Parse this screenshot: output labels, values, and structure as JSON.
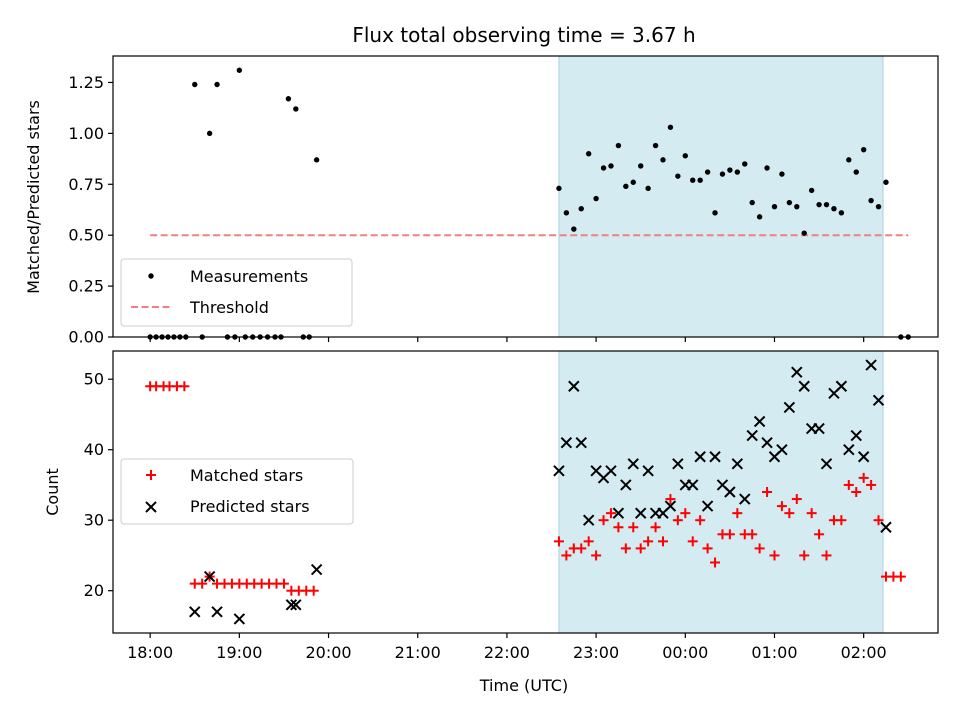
{
  "chart_data": [
    {
      "type": "scatter",
      "title": "Flux total observing time = 3.67 h",
      "xlabel": "",
      "ylabel": "Matched/Predicted stars",
      "xlim": [
        "17:35",
        "02:50"
      ],
      "ylim": [
        0,
        1.38
      ],
      "yticks": [
        "0.00",
        "0.25",
        "0.50",
        "0.75",
        "1.00",
        "1.25"
      ],
      "ytick_values": [
        0,
        0.25,
        0.5,
        0.75,
        1.0,
        1.25
      ],
      "xtick_values": [
        "18:00",
        "19:00",
        "20:00",
        "21:00",
        "22:00",
        "23:00",
        "00:00",
        "01:00",
        "02:00"
      ],
      "shaded_interval": [
        "22:35",
        "02:13"
      ],
      "shade_color": "#d4ebf1",
      "legend_position": "lower-left",
      "legend": [
        "Measurements",
        "Threshold"
      ],
      "threshold": {
        "name": "Threshold",
        "y": 0.5,
        "x_range": [
          "18:00",
          "02:30"
        ],
        "color": "#f08080"
      },
      "series": [
        {
          "name": "Measurements",
          "color": "#000000",
          "points": [
            [
              "18:00",
              0
            ],
            [
              "18:04",
              0
            ],
            [
              "18:08",
              0
            ],
            [
              "18:12",
              0
            ],
            [
              "18:16",
              0
            ],
            [
              "18:20",
              0
            ],
            [
              "18:24",
              0
            ],
            [
              "18:30",
              1.24
            ],
            [
              "18:35",
              0
            ],
            [
              "18:40",
              1.0
            ],
            [
              "18:45",
              1.24
            ],
            [
              "18:52",
              0
            ],
            [
              "18:57",
              0
            ],
            [
              "19:00",
              1.31
            ],
            [
              "19:04",
              0
            ],
            [
              "19:09",
              0
            ],
            [
              "19:14",
              0
            ],
            [
              "19:19",
              0
            ],
            [
              "19:24",
              0
            ],
            [
              "19:28",
              0
            ],
            [
              "19:33",
              1.17
            ],
            [
              "19:38",
              1.12
            ],
            [
              "19:43",
              0
            ],
            [
              "19:47",
              0
            ],
            [
              "19:52",
              0.87
            ],
            [
              "22:35",
              0.73
            ],
            [
              "22:40",
              0.61
            ],
            [
              "22:45",
              0.53
            ],
            [
              "22:50",
              0.63
            ],
            [
              "22:55",
              0.9
            ],
            [
              "23:00",
              0.68
            ],
            [
              "23:05",
              0.83
            ],
            [
              "23:10",
              0.84
            ],
            [
              "23:15",
              0.94
            ],
            [
              "23:20",
              0.74
            ],
            [
              "23:25",
              0.76
            ],
            [
              "23:30",
              0.84
            ],
            [
              "23:35",
              0.73
            ],
            [
              "23:40",
              0.94
            ],
            [
              "23:45",
              0.87
            ],
            [
              "23:50",
              1.03
            ],
            [
              "23:55",
              0.79
            ],
            [
              "00:00",
              0.89
            ],
            [
              "00:05",
              0.77
            ],
            [
              "00:10",
              0.77
            ],
            [
              "00:15",
              0.81
            ],
            [
              "00:20",
              0.61
            ],
            [
              "00:25",
              0.8
            ],
            [
              "00:30",
              0.82
            ],
            [
              "00:35",
              0.81
            ],
            [
              "00:40",
              0.85
            ],
            [
              "00:45",
              0.66
            ],
            [
              "00:50",
              0.59
            ],
            [
              "00:55",
              0.83
            ],
            [
              "01:00",
              0.64
            ],
            [
              "01:05",
              0.8
            ],
            [
              "01:10",
              0.66
            ],
            [
              "01:15",
              0.64
            ],
            [
              "01:20",
              0.51
            ],
            [
              "01:25",
              0.72
            ],
            [
              "01:30",
              0.65
            ],
            [
              "01:35",
              0.65
            ],
            [
              "01:40",
              0.63
            ],
            [
              "01:45",
              0.61
            ],
            [
              "01:50",
              0.87
            ],
            [
              "01:55",
              0.81
            ],
            [
              "02:00",
              0.92
            ],
            [
              "02:05",
              0.67
            ],
            [
              "02:10",
              0.64
            ],
            [
              "02:15",
              0.76
            ],
            [
              "02:25",
              0
            ],
            [
              "02:30",
              0
            ]
          ]
        }
      ]
    },
    {
      "type": "scatter",
      "xlabel": "Time (UTC)",
      "ylabel": "Count",
      "xlim": [
        "17:35",
        "02:50"
      ],
      "ylim": [
        14,
        54
      ],
      "yticks": [
        "20",
        "30",
        "40",
        "50"
      ],
      "ytick_values": [
        20,
        30,
        40,
        50
      ],
      "xticks": [
        "18:00",
        "19:00",
        "20:00",
        "21:00",
        "22:00",
        "23:00",
        "00:00",
        "01:00",
        "02:00"
      ],
      "xtick_values": [
        "18:00",
        "19:00",
        "20:00",
        "21:00",
        "22:00",
        "23:00",
        "00:00",
        "01:00",
        "02:00"
      ],
      "shaded_interval": [
        "22:35",
        "02:13"
      ],
      "shade_color": "#d4ebf1",
      "legend_position": "center-left",
      "legend": [
        "Matched stars",
        "Predicted stars"
      ],
      "series": [
        {
          "name": "Matched stars",
          "marker": "plus",
          "color": "#ff0000",
          "points": [
            [
              "18:00",
              49
            ],
            [
              "18:04",
              49
            ],
            [
              "18:09",
              49
            ],
            [
              "18:13",
              49
            ],
            [
              "18:18",
              49
            ],
            [
              "18:23",
              49
            ],
            [
              "18:30",
              21
            ],
            [
              "18:35",
              21
            ],
            [
              "18:40",
              22
            ],
            [
              "18:45",
              21
            ],
            [
              "18:50",
              21
            ],
            [
              "18:55",
              21
            ],
            [
              "19:00",
              21
            ],
            [
              "19:05",
              21
            ],
            [
              "19:10",
              21
            ],
            [
              "19:15",
              21
            ],
            [
              "19:20",
              21
            ],
            [
              "19:25",
              21
            ],
            [
              "19:30",
              21
            ],
            [
              "19:35",
              20
            ],
            [
              "19:40",
              20
            ],
            [
              "19:45",
              20
            ],
            [
              "19:50",
              20
            ],
            [
              "22:35",
              27
            ],
            [
              "22:40",
              25
            ],
            [
              "22:45",
              26
            ],
            [
              "22:50",
              26
            ],
            [
              "22:55",
              27
            ],
            [
              "23:00",
              25
            ],
            [
              "23:05",
              30
            ],
            [
              "23:10",
              31
            ],
            [
              "23:15",
              29
            ],
            [
              "23:20",
              26
            ],
            [
              "23:25",
              29
            ],
            [
              "23:30",
              26
            ],
            [
              "23:35",
              27
            ],
            [
              "23:40",
              29
            ],
            [
              "23:45",
              27
            ],
            [
              "23:50",
              33
            ],
            [
              "23:55",
              30
            ],
            [
              "00:00",
              31
            ],
            [
              "00:05",
              27
            ],
            [
              "00:10",
              30
            ],
            [
              "00:15",
              26
            ],
            [
              "00:20",
              24
            ],
            [
              "00:25",
              28
            ],
            [
              "00:30",
              28
            ],
            [
              "00:35",
              31
            ],
            [
              "00:40",
              28
            ],
            [
              "00:45",
              28
            ],
            [
              "00:50",
              26
            ],
            [
              "00:55",
              34
            ],
            [
              "01:00",
              25
            ],
            [
              "01:05",
              32
            ],
            [
              "01:10",
              31
            ],
            [
              "01:15",
              33
            ],
            [
              "01:20",
              25
            ],
            [
              "01:25",
              31
            ],
            [
              "01:30",
              28
            ],
            [
              "01:35",
              25
            ],
            [
              "01:40",
              30
            ],
            [
              "01:45",
              30
            ],
            [
              "01:50",
              35
            ],
            [
              "01:55",
              34
            ],
            [
              "02:00",
              36
            ],
            [
              "02:05",
              35
            ],
            [
              "02:10",
              30
            ],
            [
              "02:15",
              22
            ],
            [
              "02:20",
              22
            ],
            [
              "02:25",
              22
            ]
          ]
        },
        {
          "name": "Predicted stars",
          "marker": "x",
          "color": "#000000",
          "points": [
            [
              "18:30",
              17
            ],
            [
              "18:40",
              22
            ],
            [
              "18:45",
              17
            ],
            [
              "19:00",
              16
            ],
            [
              "19:35",
              18
            ],
            [
              "19:38",
              18
            ],
            [
              "19:52",
              23
            ],
            [
              "22:35",
              37
            ],
            [
              "22:40",
              41
            ],
            [
              "22:45",
              49
            ],
            [
              "22:50",
              41
            ],
            [
              "22:55",
              30
            ],
            [
              "23:00",
              37
            ],
            [
              "23:05",
              36
            ],
            [
              "23:10",
              37
            ],
            [
              "23:15",
              31
            ],
            [
              "23:20",
              35
            ],
            [
              "23:25",
              38
            ],
            [
              "23:30",
              31
            ],
            [
              "23:35",
              37
            ],
            [
              "23:40",
              31
            ],
            [
              "23:45",
              31
            ],
            [
              "23:50",
              32
            ],
            [
              "23:55",
              38
            ],
            [
              "00:00",
              35
            ],
            [
              "00:05",
              35
            ],
            [
              "00:10",
              39
            ],
            [
              "00:15",
              32
            ],
            [
              "00:20",
              39
            ],
            [
              "00:25",
              35
            ],
            [
              "00:30",
              34
            ],
            [
              "00:35",
              38
            ],
            [
              "00:40",
              33
            ],
            [
              "00:45",
              42
            ],
            [
              "00:50",
              44
            ],
            [
              "00:55",
              41
            ],
            [
              "01:00",
              39
            ],
            [
              "01:05",
              40
            ],
            [
              "01:10",
              46
            ],
            [
              "01:15",
              51
            ],
            [
              "01:20",
              49
            ],
            [
              "01:25",
              43
            ],
            [
              "01:30",
              43
            ],
            [
              "01:35",
              38
            ],
            [
              "01:40",
              48
            ],
            [
              "01:45",
              49
            ],
            [
              "01:50",
              40
            ],
            [
              "01:55",
              42
            ],
            [
              "02:00",
              39
            ],
            [
              "02:05",
              52
            ],
            [
              "02:10",
              47
            ],
            [
              "02:15",
              29
            ]
          ]
        }
      ]
    }
  ]
}
